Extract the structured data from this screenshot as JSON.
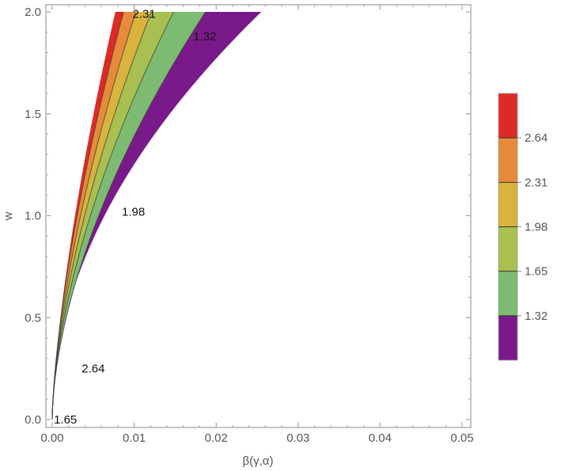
{
  "chart_data": {
    "type": "contour",
    "xlabel": "β(γ,α)",
    "ylabel": "w",
    "xlim": [
      0,
      0.05
    ],
    "ylim": [
      0,
      2
    ],
    "x_ticks": [
      "0.00",
      "0.01",
      "0.02",
      "0.03",
      "0.04",
      "0.05"
    ],
    "y_ticks": [
      "0.0",
      "0.5",
      "1.0",
      "1.5",
      "2.0"
    ],
    "grid": false,
    "legend": "right",
    "boundary_curves": [
      {
        "top_x": 0.0255,
        "exponent": 0.5
      },
      {
        "top_x": 0.0187,
        "exponent": 0.58
      },
      {
        "top_x": 0.0148,
        "exponent": 0.6
      },
      {
        "top_x": 0.0121,
        "exponent": 0.62
      },
      {
        "top_x": 0.0102,
        "exponent": 0.64
      },
      {
        "top_x": 0.0087,
        "exponent": 0.66
      },
      {
        "top_x": 0.0077,
        "exponent": 0.68
      }
    ],
    "bands": [
      {
        "color": "#7a1a8a"
      },
      {
        "label": "1.32",
        "color": "#7dbb72"
      },
      {
        "label": "1.65",
        "color": "#a8bf52"
      },
      {
        "label": "1.98",
        "color": "#d8b43e"
      },
      {
        "label": "2.31",
        "color": "#e58b3a"
      },
      {
        "label": "2.64",
        "color": "#dd2a26"
      }
    ],
    "contour_labels": [
      {
        "text": "1.32",
        "x": 0.0172,
        "y": 1.88
      },
      {
        "text": "1.98",
        "x": 0.0085,
        "y": 1.02
      },
      {
        "text": "2.31",
        "x": 0.0098,
        "y": 1.99
      },
      {
        "text": "2.64",
        "x": 0.0036,
        "y": 0.25
      },
      {
        "text": "1.65",
        "x": 0.0002,
        "y": 0.0
      }
    ],
    "colorbar_ticks": [
      "1.32",
      "1.65",
      "1.98",
      "2.31",
      "2.64"
    ]
  }
}
